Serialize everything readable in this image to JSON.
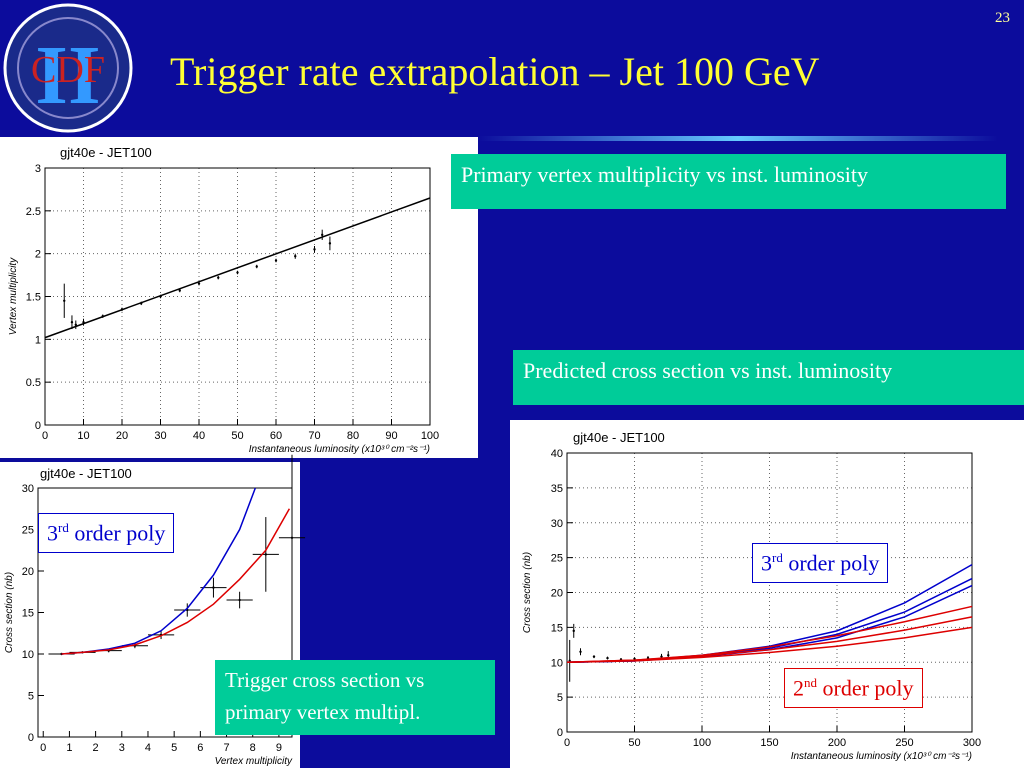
{
  "slide": {
    "page_number": "23",
    "title": "Trigger rate extrapolation – Jet 100 GeV",
    "logo": {
      "text": "CDF",
      "roman": "II"
    },
    "captions": [
      "Primary vertex multiplicity vs inst. luminosity",
      "Predicted cross section vs inst. luminosity",
      "Trigger cross section vs primary vertex multipl."
    ],
    "poly_boxes": [
      {
        "number": "3",
        "suffix": "rd",
        "text": "order poly"
      },
      {
        "number": "3",
        "suffix": "rd",
        "text": "order poly"
      },
      {
        "number": "2",
        "suffix": "nd",
        "text": "order poly"
      }
    ]
  },
  "chart_data": [
    {
      "type": "scatter",
      "title": "gjt40e - JET100",
      "x_label": "Instantaneous luminosity (x10³⁰ cm⁻²s⁻¹)",
      "y_label": "Vertex multiplicity",
      "xlim": [
        0,
        100
      ],
      "xticks": [
        0,
        10,
        20,
        30,
        40,
        50,
        60,
        70,
        80,
        90,
        100
      ],
      "ylim": [
        0,
        3
      ],
      "yticks": [
        0,
        0.5,
        1,
        1.5,
        2,
        2.5,
        3
      ],
      "grid": true,
      "series": [
        {
          "color": "#000000",
          "x": [
            5,
            7,
            8,
            10,
            15,
            20,
            25,
            30,
            35,
            40,
            45,
            50,
            55,
            60,
            65,
            70,
            72,
            74
          ],
          "values": [
            1.45,
            1.2,
            1.17,
            1.2,
            1.27,
            1.35,
            1.42,
            1.5,
            1.57,
            1.65,
            1.72,
            1.78,
            1.85,
            1.92,
            1.97,
            2.05,
            2.22,
            2.12
          ],
          "errors": [
            0.2,
            0.08,
            0.05,
            0.04,
            0.02,
            0.02,
            0.02,
            0.02,
            0.02,
            0.02,
            0.02,
            0.02,
            0.02,
            0.02,
            0.03,
            0.04,
            0.06,
            0.08
          ]
        },
        {
          "type": "line",
          "color": "#000000",
          "x": [
            0,
            100
          ],
          "values": [
            1.02,
            2.65
          ]
        }
      ]
    },
    {
      "type": "scatter",
      "title": "gjt40e - JET100",
      "x_label": "Instantaneous luminosity (x10³⁰ cm⁻²s⁻¹)",
      "y_label": "Cross section (nb)",
      "xlim": [
        0,
        300
      ],
      "xticks": [
        0,
        50,
        100,
        150,
        200,
        250,
        300
      ],
      "ylim": [
        0,
        40
      ],
      "yticks": [
        0,
        5,
        10,
        15,
        20,
        25,
        30,
        35,
        40
      ],
      "grid": true,
      "series": [
        {
          "color": "#000000",
          "x": [
            2,
            5,
            10,
            20,
            30,
            40,
            50,
            60,
            70,
            75
          ],
          "values": [
            10.2,
            14.5,
            11.5,
            10.8,
            10.6,
            10.4,
            10.5,
            10.6,
            10.8,
            11
          ],
          "errors": [
            3,
            1,
            0.5,
            0.2,
            0.2,
            0.2,
            0.2,
            0.3,
            0.4,
            0.6
          ]
        },
        {
          "type": "line",
          "color": "#0000cc",
          "x": [
            0,
            50,
            100,
            150,
            200,
            250,
            300
          ],
          "values": [
            10,
            10.2,
            11,
            12.3,
            14.5,
            18.5,
            24
          ]
        },
        {
          "type": "line",
          "color": "#0000cc",
          "x": [
            0,
            50,
            100,
            150,
            200,
            250,
            300
          ],
          "values": [
            10,
            10.2,
            10.9,
            12,
            14,
            17.2,
            22
          ]
        },
        {
          "type": "line",
          "color": "#0000cc",
          "x": [
            0,
            50,
            100,
            150,
            200,
            250,
            300
          ],
          "values": [
            10,
            10.2,
            10.8,
            11.8,
            13.5,
            16.5,
            21
          ]
        },
        {
          "type": "line",
          "color": "#dd0000",
          "x": [
            0,
            50,
            100,
            150,
            200,
            250,
            300
          ],
          "values": [
            10,
            10.3,
            11,
            12.2,
            13.8,
            15.8,
            18
          ]
        },
        {
          "type": "line",
          "color": "#dd0000",
          "x": [
            0,
            50,
            100,
            150,
            200,
            250,
            300
          ],
          "values": [
            10,
            10.3,
            10.9,
            11.8,
            13,
            14.6,
            16.5
          ]
        },
        {
          "type": "line",
          "color": "#dd0000",
          "x": [
            0,
            50,
            100,
            150,
            200,
            250,
            300
          ],
          "values": [
            10,
            10.2,
            10.7,
            11.4,
            12.3,
            13.5,
            15
          ]
        }
      ]
    },
    {
      "type": "scatter",
      "title": "gjt40e - JET100",
      "x_label": "Vertex multiplicity",
      "y_label": "Cross section (nb)",
      "xlim": [
        -0.2,
        9.5
      ],
      "xticks": [
        0,
        1,
        2,
        3,
        4,
        5,
        6,
        7,
        8,
        9
      ],
      "ylim": [
        0,
        30
      ],
      "yticks": [
        0,
        5,
        10,
        15,
        20,
        25,
        30
      ],
      "grid": false,
      "series": [
        {
          "color": "#000000",
          "x": [
            0.7,
            1.5,
            2.5,
            3.5,
            4.5,
            5.5,
            6.5,
            7.5,
            8.5,
            9.5
          ],
          "xerrors": [
            0.5,
            0.5,
            0.5,
            0.5,
            0.5,
            0.5,
            0.5,
            0.5,
            0.5,
            0.5
          ],
          "values": [
            10,
            10.2,
            10.4,
            11,
            12.3,
            15.3,
            18,
            16.5,
            22,
            24
          ],
          "errors": [
            0.1,
            0.1,
            0.2,
            0.3,
            0.5,
            0.8,
            1.2,
            1,
            4.5,
            10
          ]
        },
        {
          "type": "line",
          "color": "#0000cc",
          "x": [
            0.7,
            1.5,
            2.5,
            3.5,
            4.5,
            5.5,
            6.5,
            7.5,
            8.1
          ],
          "values": [
            10,
            10.2,
            10.6,
            11.3,
            12.8,
            15.5,
            19.5,
            25,
            30
          ]
        },
        {
          "type": "line",
          "color": "#dd0000",
          "x": [
            0.7,
            1.5,
            2.5,
            3.5,
            4.5,
            5.5,
            6.5,
            7.5,
            8.5,
            9.4
          ],
          "values": [
            10,
            10.2,
            10.5,
            11.1,
            12.2,
            13.8,
            16,
            19,
            22.5,
            27.5
          ]
        }
      ]
    }
  ]
}
